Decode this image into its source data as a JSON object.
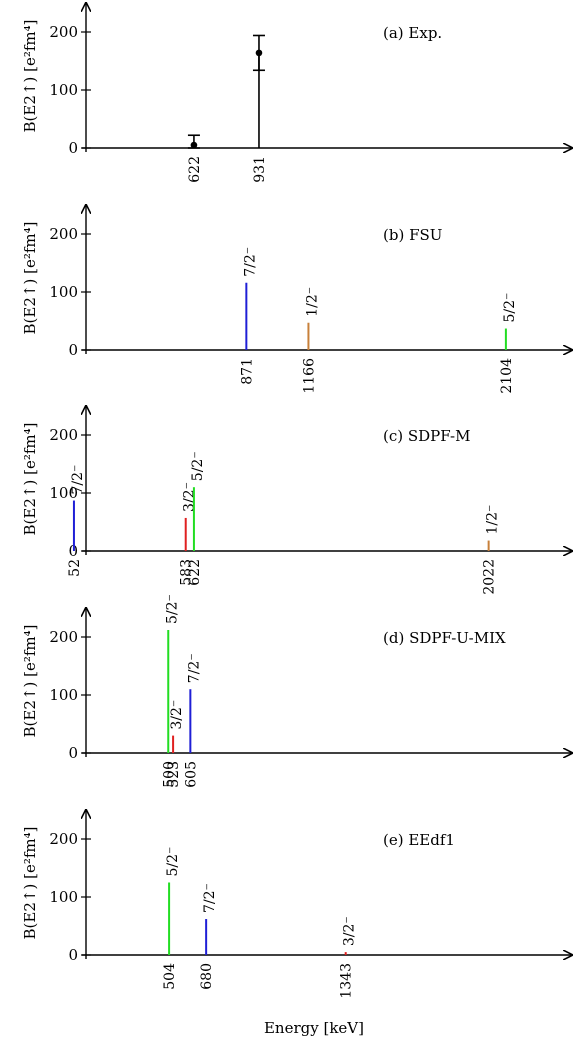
{
  "figure": {
    "xlabel": "Energy [keV]"
  },
  "chart_data": [
    {
      "type": "bar",
      "panel_label": "(a) Exp.",
      "ylabel": "B(E2↑) [e²fm⁴]",
      "ylim": [
        0,
        250
      ],
      "yticks": [
        0,
        100,
        200
      ],
      "grid": false,
      "points": [
        {
          "energy": 622,
          "value": 5,
          "err_low": 5,
          "err_high": 17,
          "color": "#000000"
        },
        {
          "energy": 931,
          "value": 164,
          "err_low": 30,
          "err_high": 30,
          "color": "#000000"
        }
      ]
    },
    {
      "type": "bar",
      "panel_label": "(b) FSU",
      "ylabel": "B(E2↑) [e²fm⁴]",
      "ylim": [
        0,
        250
      ],
      "yticks": [
        0,
        100,
        200
      ],
      "grid": false,
      "bars": [
        {
          "energy": 871,
          "value": 116,
          "state": "7/2⁻",
          "color": "#1f1fd6"
        },
        {
          "energy": 1166,
          "value": 47,
          "state": "1/2⁻",
          "color": "#c8803a"
        },
        {
          "energy": 2104,
          "value": 37,
          "state": "5/2⁻",
          "color": "#22dd22"
        }
      ]
    },
    {
      "type": "bar",
      "panel_label": "(c) SDPF-M",
      "ylabel": "B(E2↑) [e²fm⁴]",
      "ylim": [
        0,
        250
      ],
      "yticks": [
        0,
        100,
        200
      ],
      "grid": false,
      "bars": [
        {
          "energy": 52,
          "value": 87,
          "state": "7/2⁻",
          "color": "#1f1fd6"
        },
        {
          "energy": 583,
          "value": 57,
          "state": "3/2⁻",
          "color": "#e02020"
        },
        {
          "energy": 622,
          "value": 110,
          "state": "5/2⁻",
          "color": "#22dd22"
        },
        {
          "energy": 2022,
          "value": 18,
          "state": "1/2⁻",
          "color": "#c8803a"
        }
      ]
    },
    {
      "type": "bar",
      "panel_label": "(d) SDPF-U-MIX",
      "ylabel": "B(E2↑) [e²fm⁴]",
      "ylim": [
        0,
        250
      ],
      "yticks": [
        0,
        100,
        200
      ],
      "grid": false,
      "bars": [
        {
          "energy": 500,
          "value": 212,
          "state": "5/2⁻",
          "color": "#22dd22"
        },
        {
          "energy": 523,
          "value": 30,
          "state": "3/2⁻",
          "color": "#e02020"
        },
        {
          "energy": 605,
          "value": 110,
          "state": "7/2⁻",
          "color": "#1f1fd6"
        }
      ]
    },
    {
      "type": "bar",
      "panel_label": "(e) EEdf1",
      "ylabel": "B(E2↑) [e²fm⁴]",
      "ylim": [
        0,
        250
      ],
      "yticks": [
        0,
        100,
        200
      ],
      "grid": false,
      "bars": [
        {
          "energy": 504,
          "value": 125,
          "state": "5/2⁻",
          "color": "#22dd22"
        },
        {
          "energy": 680,
          "value": 62,
          "state": "7/2⁻",
          "color": "#1f1fd6"
        },
        {
          "energy": 1343,
          "value": 5,
          "state": "3/2⁻",
          "color": "#e02020"
        }
      ]
    }
  ]
}
